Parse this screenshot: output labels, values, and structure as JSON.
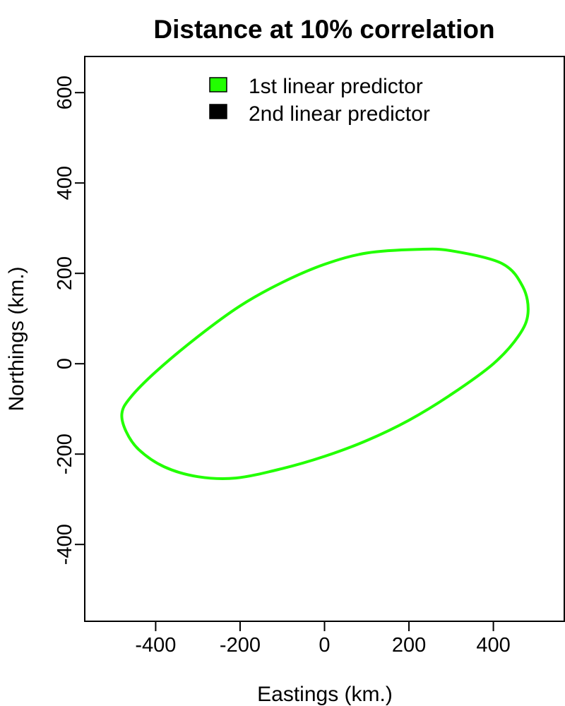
{
  "chart_data": {
    "type": "line",
    "title": "Distance at 10% correlation",
    "xlabel": "Eastings (km.)",
    "ylabel": "Northings (km.)",
    "xlim": [
      -568,
      568
    ],
    "ylim": [
      -570,
      680
    ],
    "xticks": [
      -400,
      -200,
      0,
      200,
      400
    ],
    "yticks": [
      -400,
      -200,
      0,
      200,
      400,
      600
    ],
    "legend_position": "top-center",
    "series": [
      {
        "name": "1st linear predictor",
        "color": "#22ff00",
        "shape": "ellipse",
        "center": [
          0,
          0
        ],
        "points": [
          [
            -480,
            -110
          ],
          [
            -470,
            -150
          ],
          [
            -440,
            -190
          ],
          [
            -380,
            -228
          ],
          [
            -300,
            -250
          ],
          [
            -210,
            -253
          ],
          [
            -100,
            -232
          ],
          [
            0,
            -205
          ],
          [
            100,
            -170
          ],
          [
            200,
            -125
          ],
          [
            300,
            -68
          ],
          [
            400,
            0
          ],
          [
            460,
            62
          ],
          [
            482,
            112
          ],
          [
            470,
            170
          ],
          [
            420,
            222
          ],
          [
            300,
            250
          ],
          [
            220,
            253
          ],
          [
            100,
            245
          ],
          [
            0,
            220
          ],
          [
            -100,
            180
          ],
          [
            -200,
            128
          ],
          [
            -300,
            60
          ],
          [
            -400,
            -18
          ],
          [
            -460,
            -75
          ],
          [
            -480,
            -110
          ]
        ]
      },
      {
        "name": "2nd linear predictor",
        "color": "#000000",
        "points": []
      }
    ]
  }
}
